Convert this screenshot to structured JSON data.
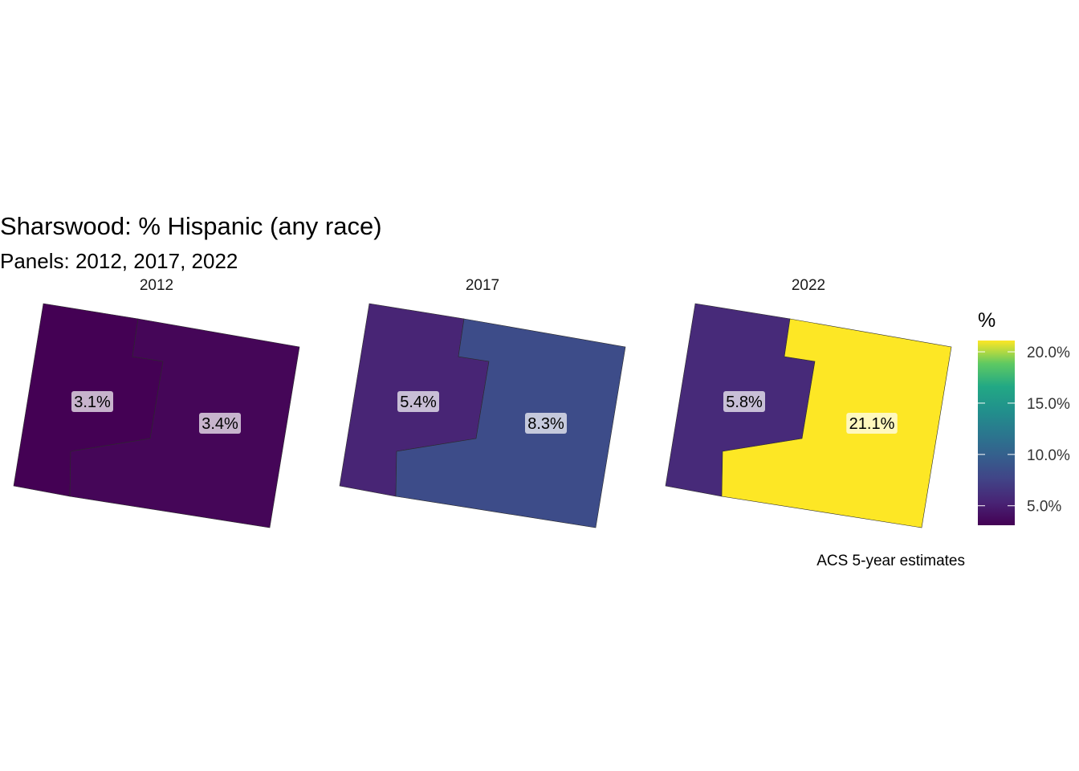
{
  "chart_data": {
    "type": "choropleth-map",
    "title": "Sharswood: % Hispanic (any race)",
    "subtitle": "Panels: 2012, 2017, 2022",
    "caption": "ACS 5-year estimates",
    "panels": [
      {
        "year": "2012",
        "tracts": [
          {
            "tract": "west",
            "value": 3.1,
            "label": "3.1%"
          },
          {
            "tract": "east",
            "value": 3.4,
            "label": "3.4%"
          }
        ]
      },
      {
        "year": "2017",
        "tracts": [
          {
            "tract": "west",
            "value": 5.4,
            "label": "5.4%"
          },
          {
            "tract": "east",
            "value": 8.3,
            "label": "8.3%"
          }
        ]
      },
      {
        "year": "2022",
        "tracts": [
          {
            "tract": "west",
            "value": 5.8,
            "label": "5.8%"
          },
          {
            "tract": "east",
            "value": 21.1,
            "label": "21.1%"
          }
        ]
      }
    ],
    "legend": {
      "title": "%",
      "min": 3.1,
      "max": 21.1,
      "palette": "viridis",
      "ticks": [
        {
          "value": 5,
          "label": "5.0%"
        },
        {
          "value": 10,
          "label": "10.0%"
        },
        {
          "value": 15,
          "label": "15.0%"
        },
        {
          "value": 20,
          "label": "20.0%"
        }
      ]
    }
  }
}
